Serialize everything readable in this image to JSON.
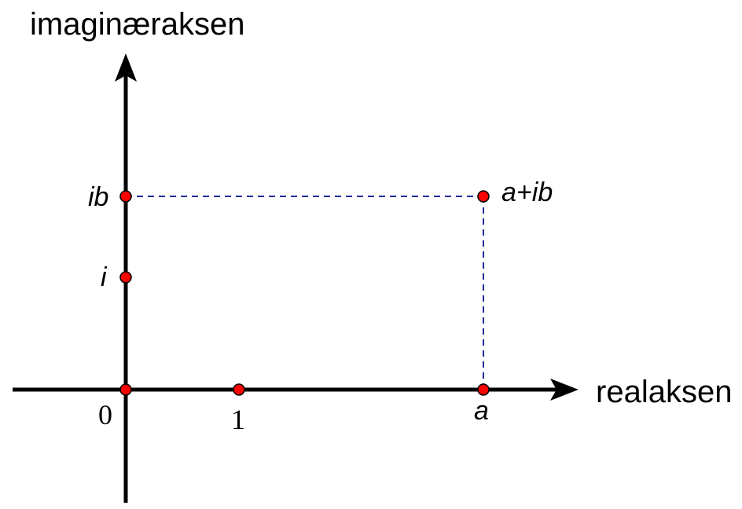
{
  "diagram": {
    "y_axis_title": "imaginæraksen",
    "x_axis_title": "realaksen",
    "points": {
      "origin": "0",
      "one": "1",
      "a": "a",
      "i": "i",
      "ib": "ib",
      "complex": "a+ib"
    },
    "colors": {
      "point_fill": "#ff0000",
      "point_stroke": "#000000",
      "axis": "#000000",
      "guide": "#1f2a9a"
    }
  }
}
